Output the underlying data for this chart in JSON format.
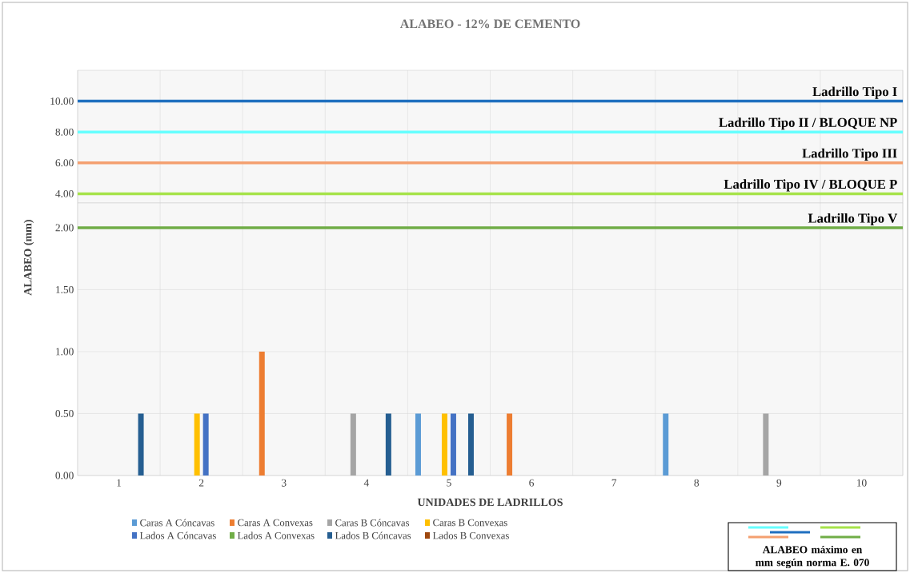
{
  "chart_data": [
    {
      "type": "line",
      "title": "ALABEO - 12% DE CEMENTO",
      "categories": [
        "1",
        "2",
        "3",
        "4",
        "5",
        "6",
        "7",
        "8",
        "9",
        "10"
      ],
      "ylim": [
        3.4,
        12
      ],
      "yticks": [
        {
          "value": 4,
          "label": "4.00"
        },
        {
          "value": 6,
          "label": "6.00"
        },
        {
          "value": 8,
          "label": "8.00"
        },
        {
          "value": 10,
          "label": "10.00"
        }
      ],
      "ref_lines": [
        {
          "axis": "y",
          "value": 10,
          "label": "Ladrillo Tipo I",
          "color": "#1f6fbf"
        },
        {
          "axis": "y",
          "value": 8,
          "label": "Ladrillo Tipo II / BLOQUE NP",
          "color": "#66ffff"
        },
        {
          "axis": "y",
          "value": 6,
          "label": "Ladrillo Tipo III",
          "color": "#f4a070"
        },
        {
          "axis": "y",
          "value": 4,
          "label": "Ladrillo Tipo IV / BLOQUE P",
          "color": "#a6e34a"
        }
      ],
      "grid": true,
      "tick_labels": "y"
    },
    {
      "type": "bar",
      "xlabel": "UNIDADES DE LADRILLOS",
      "ylabel": "ALABEO (mm)",
      "categories": [
        "1",
        "2",
        "3",
        "4",
        "5",
        "6",
        "7",
        "8",
        "9",
        "10"
      ],
      "series": [
        {
          "name": "Caras A Cóncavas",
          "color": "#5b9bd5",
          "values": [
            0,
            0,
            0,
            0,
            0.5,
            0,
            0,
            0.5,
            0,
            0
          ]
        },
        {
          "name": "Caras A Convexas",
          "color": "#ed7d31",
          "values": [
            0,
            0,
            1.0,
            0,
            0,
            0.5,
            0,
            0,
            0,
            0
          ]
        },
        {
          "name": "Caras B Cóncavas",
          "color": "#a5a5a5",
          "values": [
            0,
            0,
            0,
            0.5,
            0,
            0,
            0,
            0,
            0.5,
            0
          ]
        },
        {
          "name": "Caras B Convexas",
          "color": "#ffc000",
          "values": [
            0,
            0.5,
            0,
            0,
            0.5,
            0,
            0,
            0,
            0,
            0
          ]
        },
        {
          "name": "Lados A Cóncavas",
          "color": "#4472c4",
          "values": [
            0,
            0.5,
            0,
            0,
            0.5,
            0,
            0,
            0,
            0,
            0
          ]
        },
        {
          "name": "Lados A Convexas",
          "color": "#70ad47",
          "values": [
            0,
            0,
            0,
            0,
            0,
            0,
            0,
            0,
            0,
            0
          ]
        },
        {
          "name": "Lados B Cóncavas",
          "color": "#255e91",
          "values": [
            0.5,
            0,
            0,
            0.5,
            0.5,
            0,
            0,
            0,
            0,
            0
          ]
        },
        {
          "name": "Lados B Convexas",
          "color": "#9e480e",
          "values": [
            0,
            0,
            0,
            0,
            0,
            0,
            0,
            0,
            0,
            0
          ]
        }
      ],
      "ylim": [
        0,
        2.2
      ],
      "yticks": [
        {
          "value": 0,
          "label": "0.00"
        },
        {
          "value": 0.5,
          "label": "0.50"
        },
        {
          "value": 1,
          "label": "1.00"
        },
        {
          "value": 1.5,
          "label": "1.50"
        },
        {
          "value": 2,
          "label": "2.00"
        }
      ],
      "ref_lines": [
        {
          "axis": "y",
          "value": 2,
          "label": "Ladrillo Tipo V",
          "color": "#70ad47"
        }
      ],
      "grid": true,
      "legend": "bottom",
      "annotations": [
        "ALABEO máximo en mm según norma E. 070"
      ]
    }
  ]
}
